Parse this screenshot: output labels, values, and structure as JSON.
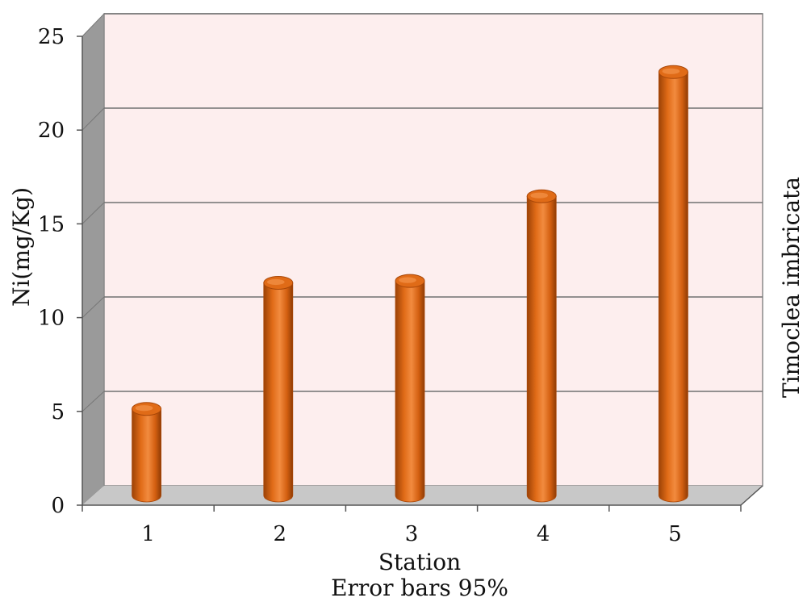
{
  "chart_data": {
    "type": "bar",
    "style": "3d-cylinder",
    "categories": [
      "1",
      "2",
      "3",
      "4",
      "5"
    ],
    "values": [
      4.6,
      11.3,
      11.4,
      15.9,
      22.5
    ],
    "xlabel": "Station",
    "xlabel_sub": "Error bars 95%",
    "ylabel": "Ni(mg/Kg)",
    "side_label": "Timoclea imbricata",
    "ylim": [
      0,
      25
    ],
    "yticks": [
      "0",
      "5",
      "10",
      "15",
      "20",
      "25"
    ],
    "grid": true,
    "legend": "none"
  },
  "colors": {
    "wall": "#fdeeee",
    "floor": "#c8c8c8",
    "side_wall": "#9a9a9a",
    "bar": "#e06b17",
    "bar_dark": "#a94708",
    "bar_light": "#f4934a",
    "grid": "#707070"
  }
}
